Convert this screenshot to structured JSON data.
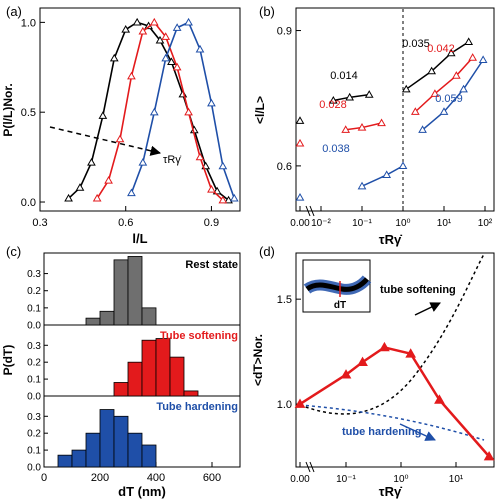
{
  "panels": {
    "a": {
      "label": "(a)"
    },
    "b": {
      "label": "(b)"
    },
    "c": {
      "label": "(c)"
    },
    "d": {
      "label": "(d)"
    }
  },
  "colors": {
    "black": "#000000",
    "red": "#e31a1c",
    "blue": "#1f4fa8",
    "gray": "#6f6f6f"
  },
  "chart_data": [
    {
      "panel": "a",
      "type": "line",
      "xlabel": "l/L",
      "ylabel": "P(l/L)Nor.",
      "xlim": [
        0.3,
        1.0
      ],
      "ylim": [
        -0.05,
        1.08
      ],
      "xticks": [
        0.3,
        0.6,
        0.9
      ],
      "xtick_labels": [
        "0.3",
        "0.6",
        "0.9"
      ],
      "yticks": [
        0.0,
        0.5,
        1.0
      ],
      "ytick_labels": [
        "0.0",
        "0.5",
        "1.0"
      ],
      "annotation": "τRγ̇",
      "series": [
        {
          "color": "black",
          "x": [
            0.4,
            0.44,
            0.48,
            0.52,
            0.56,
            0.6,
            0.64,
            0.68,
            0.72,
            0.76,
            0.8,
            0.84,
            0.88,
            0.92,
            0.96
          ],
          "y": [
            0.02,
            0.08,
            0.22,
            0.48,
            0.8,
            0.96,
            1.0,
            0.98,
            0.9,
            0.78,
            0.6,
            0.4,
            0.2,
            0.06,
            0.01
          ]
        },
        {
          "color": "red",
          "x": [
            0.5,
            0.54,
            0.58,
            0.62,
            0.66,
            0.7,
            0.74,
            0.78,
            0.82,
            0.86,
            0.9,
            0.94
          ],
          "y": [
            0.02,
            0.12,
            0.35,
            0.7,
            0.95,
            1.0,
            0.92,
            0.75,
            0.5,
            0.25,
            0.07,
            0.01
          ]
        },
        {
          "color": "blue",
          "x": [
            0.62,
            0.66,
            0.7,
            0.74,
            0.78,
            0.82,
            0.86,
            0.9,
            0.94,
            0.98
          ],
          "y": [
            0.05,
            0.22,
            0.5,
            0.8,
            0.97,
            1.0,
            0.85,
            0.55,
            0.2,
            0.02
          ]
        }
      ]
    },
    {
      "panel": "b",
      "type": "line",
      "xlabel": "τRγ̇",
      "ylabel": "<l/L>",
      "ylim": [
        0.5,
        0.95
      ],
      "yticks": [
        0.6,
        0.9
      ],
      "ytick_labels": [
        "0.6",
        "0.9"
      ],
      "xtick_labels": [
        "0.00",
        "10⁻²",
        "10⁻¹",
        "10⁰",
        "10¹",
        "10²"
      ],
      "zero_points": [
        {
          "color": "black",
          "y": 0.7
        },
        {
          "color": "red",
          "y": 0.65
        },
        {
          "color": "blue",
          "y": 0.53
        }
      ],
      "series": [
        {
          "color": "black",
          "slope_label": "0.014",
          "x": [
            0.02,
            0.05,
            0.15
          ],
          "y": [
            0.745,
            0.752,
            0.758
          ]
        },
        {
          "color": "black",
          "slope_label": "0.035",
          "x": [
            1.2,
            5,
            15,
            40
          ],
          "y": [
            0.77,
            0.81,
            0.85,
            0.875
          ]
        },
        {
          "color": "red",
          "slope_label": "0.028",
          "x": [
            0.04,
            0.1,
            0.3
          ],
          "y": [
            0.68,
            0.685,
            0.695
          ]
        },
        {
          "color": "red",
          "slope_label": "0.042",
          "x": [
            2,
            6,
            20,
            50
          ],
          "y": [
            0.72,
            0.76,
            0.8,
            0.84
          ]
        },
        {
          "color": "blue",
          "slope_label": "0.038",
          "x": [
            0.1,
            0.4,
            1.0
          ],
          "y": [
            0.555,
            0.58,
            0.6
          ]
        },
        {
          "color": "blue",
          "slope_label": "0.059",
          "x": [
            3,
            10,
            30,
            90
          ],
          "y": [
            0.68,
            0.72,
            0.77,
            0.835
          ]
        }
      ]
    },
    {
      "panel": "c",
      "type": "bar",
      "xlabel": "dT (nm)",
      "ylabel": "P(dT)",
      "xlim": [
        0,
        700
      ],
      "ylim": [
        0,
        0.42
      ],
      "xticks": [
        0,
        200,
        400,
        600
      ],
      "xtick_labels": [
        "0",
        "200",
        "400",
        "600"
      ],
      "yticks": [
        0.0,
        0.1,
        0.2,
        0.3
      ],
      "ytick_labels": [
        "0.0",
        "0.1",
        "0.2",
        "0.3"
      ],
      "bin_width": 50,
      "series": [
        {
          "name": "Rest state",
          "color": "gray",
          "centers": [
            175,
            225,
            275,
            325,
            375
          ],
          "values": [
            0.04,
            0.08,
            0.38,
            0.4,
            0.1
          ]
        },
        {
          "name": "Tube softening",
          "color": "red",
          "centers": [
            275,
            325,
            375,
            425,
            475,
            525
          ],
          "values": [
            0.08,
            0.2,
            0.33,
            0.34,
            0.23,
            0.03
          ]
        },
        {
          "name": "Tube hardening",
          "color": "blue",
          "centers": [
            75,
            125,
            175,
            225,
            275,
            325,
            375
          ],
          "values": [
            0.07,
            0.1,
            0.2,
            0.34,
            0.3,
            0.2,
            0.13
          ]
        }
      ]
    },
    {
      "panel": "d",
      "type": "line",
      "xlabel": "τRγ̇",
      "ylabel": "<dT>Nor.",
      "ylim": [
        0.7,
        1.72
      ],
      "yticks": [
        1.0,
        1.5
      ],
      "ytick_labels": [
        "1.0",
        "1.5"
      ],
      "xtick_labels": [
        "0.00",
        "10⁻¹",
        "10⁰",
        "10¹"
      ],
      "annotations": [
        "tube softening",
        "tube hardening"
      ],
      "inset_label": "dT",
      "series": [
        {
          "color": "red",
          "x": [
            0,
            0.1,
            0.2,
            0.5,
            1.5,
            5,
            40
          ],
          "y": [
            1.0,
            1.14,
            1.2,
            1.27,
            1.24,
            1.02,
            0.75
          ]
        }
      ]
    }
  ]
}
